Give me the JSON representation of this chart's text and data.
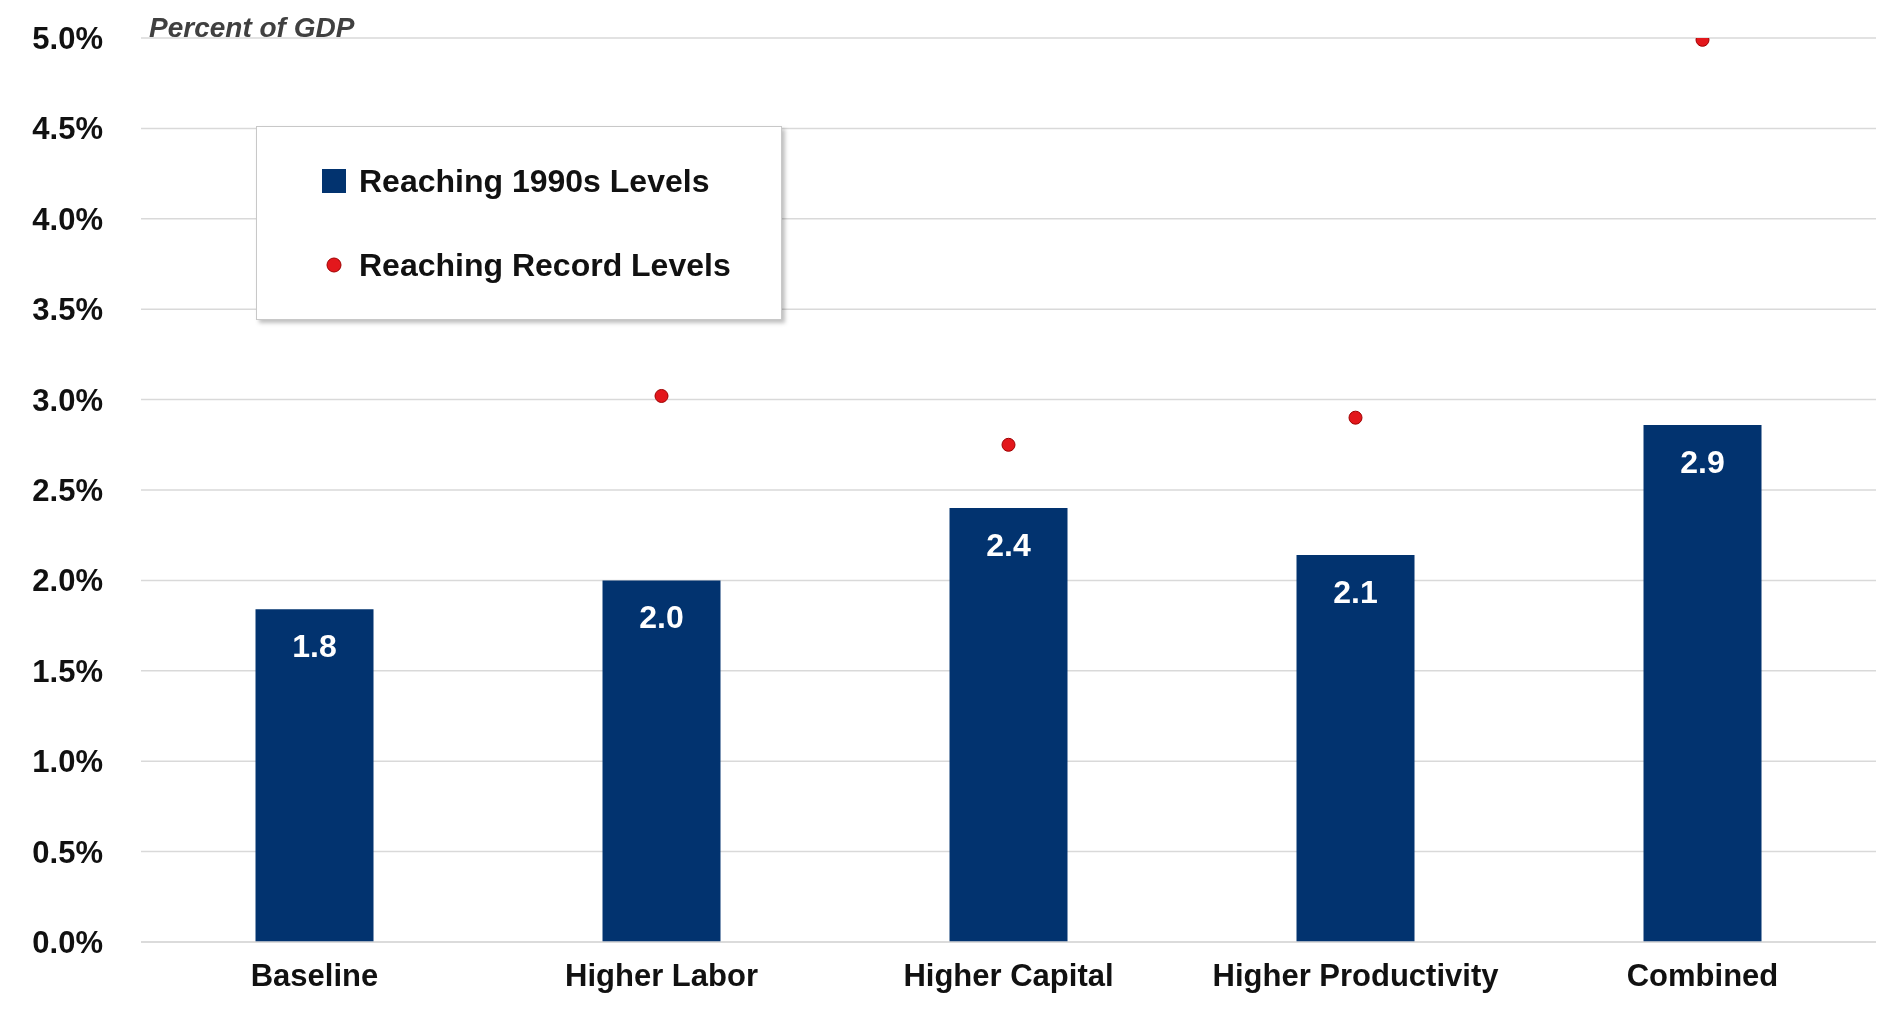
{
  "chart_data": {
    "type": "bar",
    "annotations": [
      "Percent of GDP"
    ],
    "categories": [
      "Baseline",
      "Higher Labor",
      "Higher Capital",
      "Higher Productivity",
      "Combined"
    ],
    "series": [
      {
        "name": "Reaching 1990s Levels",
        "color": "#02336f",
        "values": [
          1.84,
          2.0,
          2.4,
          2.14,
          2.86
        ],
        "value_labels": [
          "1.8",
          "2.0",
          "2.4",
          "2.1",
          "2.9"
        ]
      },
      {
        "name": "Reaching Record Levels",
        "type": "scatter",
        "color": "#e3171c",
        "values": [
          null,
          3.02,
          2.75,
          2.9,
          4.99
        ]
      }
    ],
    "ylim": [
      0,
      5
    ],
    "yticks": [
      {
        "value": 0,
        "label": "0.0%"
      },
      {
        "value": 0.5,
        "label": "0.5%"
      },
      {
        "value": 1,
        "label": "1.0%"
      },
      {
        "value": 1.5,
        "label": "1.5%"
      },
      {
        "value": 2,
        "label": "2.0%"
      },
      {
        "value": 2.5,
        "label": "2.5%"
      },
      {
        "value": 3,
        "label": "3.0%"
      },
      {
        "value": 3.5,
        "label": "3.5%"
      },
      {
        "value": 4,
        "label": "4.0%"
      },
      {
        "value": 4.5,
        "label": "4.5%"
      },
      {
        "value": 5,
        "label": "5.0%"
      }
    ],
    "grid": "y",
    "legend": "top left",
    "marker": "circle"
  }
}
